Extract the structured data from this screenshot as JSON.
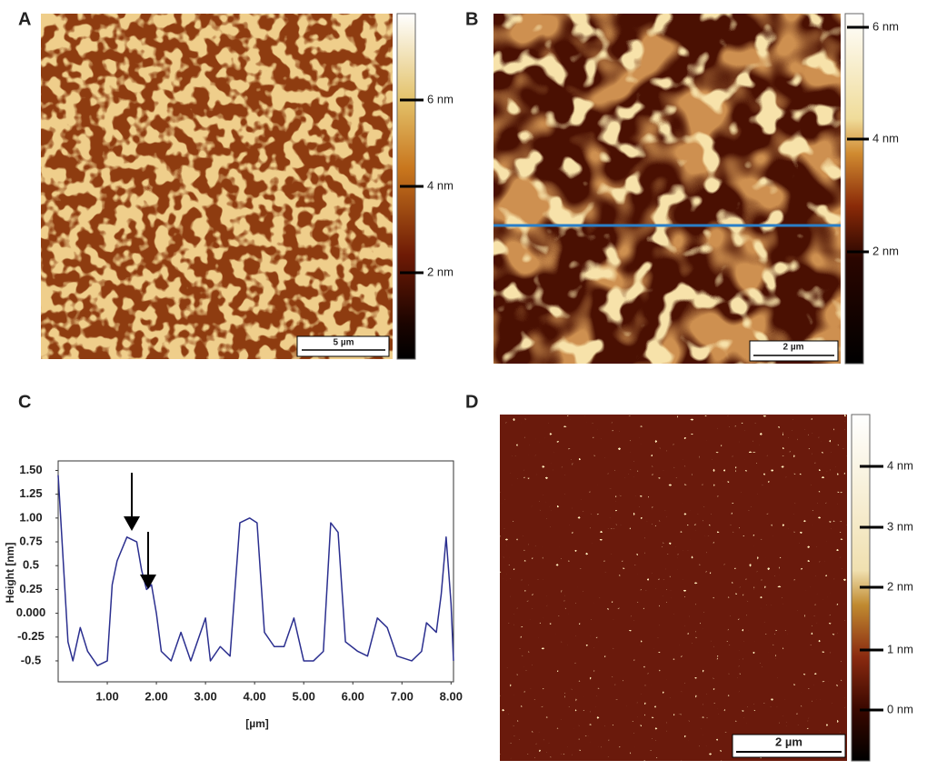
{
  "panel_labels": [
    "A",
    "B",
    "C",
    "D"
  ],
  "panels": {
    "A": {
      "colorbar_ticks": [
        "6 nm",
        "4 nm",
        "2 nm"
      ],
      "scale_bar": "5 µm"
    },
    "B": {
      "colorbar_ticks": [
        "6 nm",
        "4 nm",
        "2 nm"
      ],
      "scale_bar": "2 µm"
    },
    "D": {
      "colorbar_ticks": [
        "4 nm",
        "3 nm",
        "2 nm",
        "1 nm",
        "0 nm"
      ],
      "scale_bar": "2 µm"
    }
  },
  "chart_data": {
    "type": "line",
    "xlabel": "[µm]",
    "ylabel": "Height  [nm]",
    "x": [
      0,
      0.2,
      0.3,
      0.45,
      0.6,
      0.8,
      1.0,
      1.1,
      1.2,
      1.4,
      1.6,
      1.7,
      1.8,
      1.9,
      2.0,
      2.1,
      2.3,
      2.5,
      2.7,
      3.0,
      3.1,
      3.3,
      3.5,
      3.7,
      3.9,
      4.05,
      4.2,
      4.4,
      4.6,
      4.8,
      5.0,
      5.2,
      5.4,
      5.55,
      5.7,
      5.85,
      6.1,
      6.3,
      6.5,
      6.7,
      6.9,
      7.2,
      7.4,
      7.5,
      7.7,
      7.8,
      7.9,
      8.0,
      8.05
    ],
    "series": [
      {
        "color": "#2b2f8f",
        "values": [
          1.45,
          -0.3,
          -0.5,
          -0.15,
          -0.4,
          -0.55,
          -0.5,
          0.3,
          0.55,
          0.8,
          0.75,
          0.45,
          0.25,
          0.3,
          0.0,
          -0.4,
          -0.5,
          -0.2,
          -0.5,
          -0.05,
          -0.5,
          -0.35,
          -0.45,
          0.95,
          1.0,
          0.95,
          -0.2,
          -0.35,
          -0.35,
          -0.05,
          -0.5,
          -0.5,
          -0.4,
          0.95,
          0.85,
          -0.3,
          -0.4,
          -0.45,
          -0.05,
          -0.15,
          -0.45,
          -0.5,
          -0.4,
          -0.1,
          -0.2,
          0.2,
          0.8,
          0.1,
          -0.5
        ]
      }
    ],
    "xlim": [
      0,
      8.05
    ],
    "ylim": [
      -0.72,
      1.6
    ],
    "xticks": [
      {
        "value": 1,
        "label": "1.00"
      },
      {
        "value": 2,
        "label": "2.00"
      },
      {
        "value": 3,
        "label": "3.00"
      },
      {
        "value": 4,
        "label": "4.00"
      },
      {
        "value": 5,
        "label": "5.00"
      },
      {
        "value": 6,
        "label": "6.00"
      },
      {
        "value": 7,
        "label": "7.00"
      },
      {
        "value": 8,
        "label": "8.00"
      }
    ],
    "yticks": [
      {
        "value": 1.5,
        "label": "1.50"
      },
      1.25,
      {
        "value": 1,
        "label": "1.00"
      },
      0.75,
      0.5,
      0.25,
      {
        "value": 0,
        "label": "0.000"
      },
      -0.25,
      -0.5
    ]
  }
}
